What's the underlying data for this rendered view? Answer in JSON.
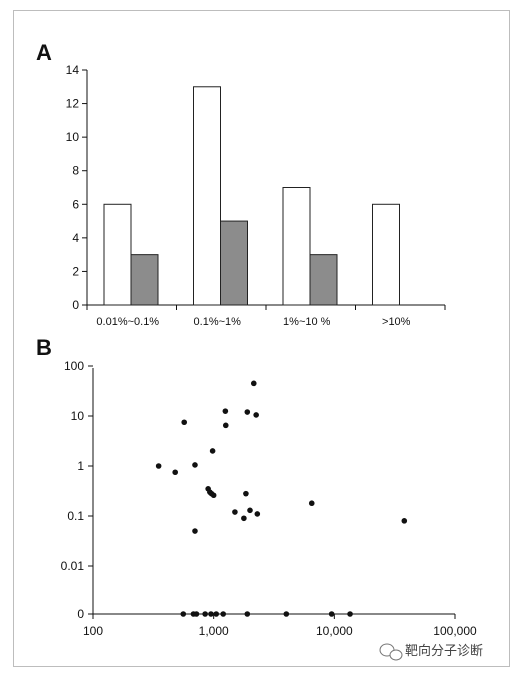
{
  "chart_data": [
    {
      "panel": "A",
      "type": "bar",
      "categories": [
        "0.01%~0.1%",
        "0.1%~1%",
        "1%~10 %",
        ">10%"
      ],
      "series": [
        {
          "color": "#ffffff",
          "values": [
            6,
            13,
            7,
            6
          ]
        },
        {
          "color": "#8c8c8c",
          "values": [
            3,
            5,
            3,
            0
          ]
        }
      ],
      "ylim": [
        0,
        14
      ],
      "yticks": [
        "0",
        "2",
        "4",
        "6",
        "8",
        "10",
        "12",
        "14"
      ],
      "grid": false
    },
    {
      "panel": "B",
      "type": "scatter",
      "xscale": "log",
      "yscale": "log",
      "xlim": [
        100,
        100000
      ],
      "xticks": [
        "100",
        "1,000",
        "10,000",
        "100,000"
      ],
      "yticks": [
        "0",
        "0.01",
        "0.1",
        "1",
        "10",
        "100"
      ],
      "points": [
        [
          350,
          1.0
        ],
        [
          480,
          0.75
        ],
        [
          570,
          7.5
        ],
        [
          700,
          1.05
        ],
        [
          700,
          0.05
        ],
        [
          900,
          0.35
        ],
        [
          930,
          0.3
        ],
        [
          960,
          0.28
        ],
        [
          980,
          2.0
        ],
        [
          1000,
          0.26
        ],
        [
          1250,
          12.5
        ],
        [
          1260,
          6.5
        ],
        [
          1500,
          0.12
        ],
        [
          1780,
          0.09
        ],
        [
          1850,
          0.28
        ],
        [
          1900,
          12.0
        ],
        [
          2000,
          0.13
        ],
        [
          2150,
          45.0
        ],
        [
          2250,
          10.5
        ],
        [
          2300,
          0.11
        ],
        [
          6500,
          0.18
        ],
        [
          38000,
          0.08
        ],
        [
          560,
          0
        ],
        [
          680,
          0
        ],
        [
          720,
          0
        ],
        [
          850,
          0
        ],
        [
          950,
          0
        ],
        [
          1050,
          0
        ],
        [
          1200,
          0
        ],
        [
          1900,
          0
        ],
        [
          4000,
          0
        ],
        [
          9500,
          0
        ],
        [
          13500,
          0
        ]
      ],
      "grid": false
    }
  ],
  "watermark": {
    "text": "靶向分子诊断"
  }
}
